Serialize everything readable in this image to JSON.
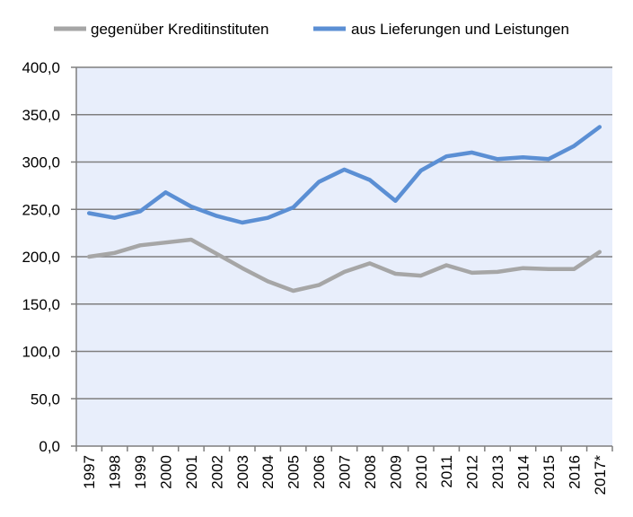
{
  "chart_data": {
    "type": "line",
    "title": "",
    "xlabel": "",
    "ylabel": "",
    "ylim": [
      0,
      400
    ],
    "yticks": [
      "0,0",
      "50,0",
      "100,0",
      "150,0",
      "200,0",
      "250,0",
      "300,0",
      "350,0",
      "400,0"
    ],
    "categories": [
      "1997",
      "1998",
      "1999",
      "2000",
      "2001",
      "2002",
      "2003",
      "2004",
      "2005",
      "2006",
      "2007",
      "2008",
      "2009",
      "2010",
      "2011",
      "2012",
      "2013",
      "2014",
      "2015",
      "2016",
      "2017*"
    ],
    "grid": true,
    "legend_position": "top",
    "plot_background": "#e8eefb",
    "series": [
      {
        "name": "gegenüber Kreditinstituten",
        "color": "#a6a6a6",
        "values": [
          200,
          204,
          212,
          215,
          218,
          203,
          188,
          174,
          164,
          170,
          184,
          193,
          182,
          180,
          191,
          183,
          184,
          188,
          187,
          187,
          205
        ]
      },
      {
        "name": "aus Lieferungen und Leistungen",
        "color": "#5b8fd4",
        "values": [
          246,
          241,
          248,
          268,
          253,
          243,
          236,
          241,
          252,
          279,
          292,
          281,
          259,
          291,
          306,
          310,
          303,
          305,
          303,
          317,
          337
        ]
      }
    ]
  }
}
